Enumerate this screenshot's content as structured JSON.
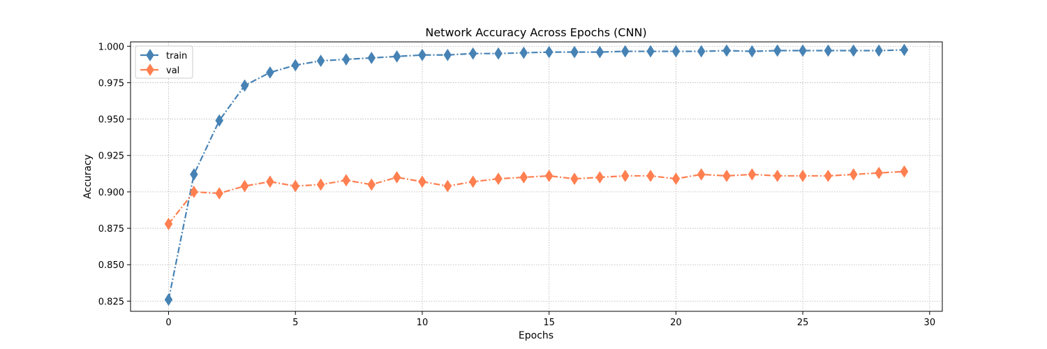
{
  "chart_data": {
    "type": "line",
    "title": "Network Accuracy Across Epochs (CNN)",
    "xlabel": "Epochs",
    "ylabel": "Accuracy",
    "xlim": [
      -1.5,
      30.5
    ],
    "ylim": [
      0.818,
      1.003
    ],
    "xticks": [
      0,
      5,
      10,
      15,
      20,
      25,
      30
    ],
    "yticks": [
      0.825,
      0.85,
      0.875,
      0.9,
      0.925,
      0.95,
      0.975,
      1.0
    ],
    "ytick_labels": [
      "0.825",
      "0.850",
      "0.875",
      "0.900",
      "0.925",
      "0.950",
      "0.975",
      "1.000"
    ],
    "grid": true,
    "legend_position": "top-left",
    "x": [
      0,
      1,
      2,
      3,
      4,
      5,
      6,
      7,
      8,
      9,
      10,
      11,
      12,
      13,
      14,
      15,
      16,
      17,
      18,
      19,
      20,
      21,
      22,
      23,
      24,
      25,
      26,
      27,
      28,
      29
    ],
    "series": [
      {
        "name": "train",
        "color": "#4682b4",
        "marker": "diamond",
        "linestyle": "dashdot",
        "values": [
          0.826,
          0.912,
          0.949,
          0.973,
          0.982,
          0.987,
          0.99,
          0.991,
          0.992,
          0.993,
          0.994,
          0.994,
          0.995,
          0.995,
          0.9955,
          0.996,
          0.996,
          0.996,
          0.9965,
          0.9965,
          0.9965,
          0.9965,
          0.997,
          0.9965,
          0.997,
          0.997,
          0.997,
          0.997,
          0.997,
          0.9975
        ]
      },
      {
        "name": "val",
        "color": "#ff7f50",
        "marker": "diamond",
        "linestyle": "dashdot",
        "values": [
          0.878,
          0.9,
          0.899,
          0.904,
          0.907,
          0.904,
          0.905,
          0.908,
          0.905,
          0.91,
          0.907,
          0.904,
          0.907,
          0.909,
          0.91,
          0.911,
          0.909,
          0.91,
          0.911,
          0.911,
          0.909,
          0.912,
          0.911,
          0.912,
          0.911,
          0.911,
          0.911,
          0.912,
          0.913,
          0.914
        ]
      }
    ]
  }
}
